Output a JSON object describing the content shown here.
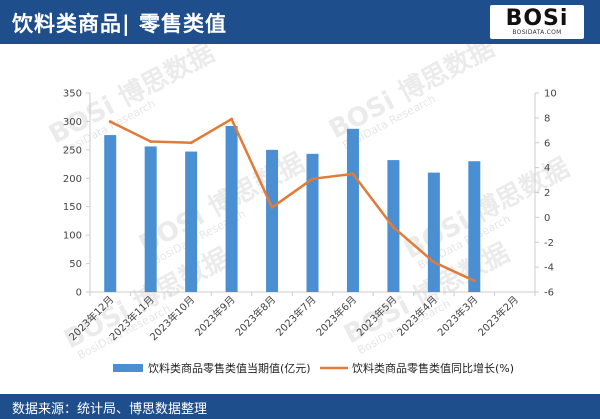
{
  "header": {
    "title": "饮料类商品| 零售类值"
  },
  "logo": {
    "text": "BOSi",
    "sub": "BOSIDATA.COM"
  },
  "footer": {
    "source": "数据来源：统计局、博思数据整理"
  },
  "watermark": {
    "brand": "BOSi",
    "cn": "博思数据",
    "en": "BosiData Research"
  },
  "colors": {
    "header_bg": "#1f4e8c",
    "bar": "#4a8fd1",
    "line": "#e07b39",
    "axis": "#cccccc"
  },
  "chart_data": {
    "type": "bar",
    "categories": [
      "2023年12月",
      "2023年11月",
      "2023年10月",
      "2023年9月",
      "2023年8月",
      "2023年7月",
      "2023年6月",
      "2023年5月",
      "2023年4月",
      "2023年3月",
      "2023年2月"
    ],
    "series": [
      {
        "name": "饮料类商品零售类值当期值(亿元)",
        "type": "bar",
        "axis": "left",
        "values": [
          276,
          256,
          247,
          292,
          250,
          243,
          287,
          232,
          210,
          230,
          null
        ]
      },
      {
        "name": "饮料类商品零售类值同比增长(%)",
        "type": "line",
        "axis": "right",
        "values": [
          7.7,
          6.1,
          6.0,
          7.9,
          0.8,
          3.1,
          3.5,
          -0.8,
          -3.6,
          -5.1,
          null
        ]
      }
    ],
    "ylim_left": [
      0,
      350
    ],
    "yticks_left": [
      0,
      50,
      100,
      150,
      200,
      250,
      300,
      350
    ],
    "ylim_right": [
      -6,
      10
    ],
    "yticks_right": [
      -6,
      -4,
      -2,
      0,
      2,
      4,
      6,
      8,
      10
    ],
    "grid": false,
    "legend": "bottom"
  }
}
